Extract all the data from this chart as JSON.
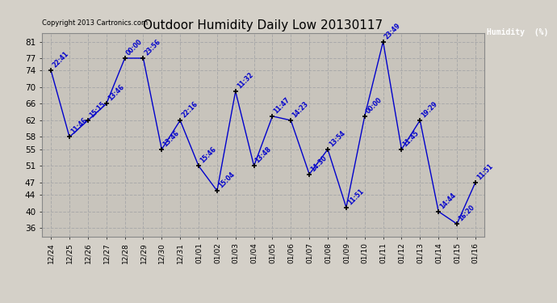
{
  "title": "Outdoor Humidity Daily Low 20130117",
  "copyright": "Copyright 2013 Cartronics.com",
  "legend_label": "Humidity  (%)",
  "x_labels": [
    "12/24",
    "12/25",
    "12/26",
    "12/27",
    "12/28",
    "12/29",
    "12/30",
    "12/31",
    "01/01",
    "01/02",
    "01/03",
    "01/04",
    "01/05",
    "01/06",
    "01/07",
    "01/08",
    "01/09",
    "01/10",
    "01/11",
    "01/12",
    "01/13",
    "01/14",
    "01/15",
    "01/16"
  ],
  "y_values": [
    74,
    58,
    62,
    66,
    77,
    77,
    55,
    62,
    51,
    45,
    69,
    51,
    63,
    62,
    49,
    55,
    41,
    63,
    81,
    55,
    62,
    40,
    37,
    47
  ],
  "point_labels": [
    "22:41",
    "11:46",
    "15:15",
    "13:46",
    "00:00",
    "23:56",
    "13:46",
    "22:16",
    "15:46",
    "15:04",
    "11:32",
    "13:48",
    "11:47",
    "14:23",
    "14:30",
    "13:54",
    "11:51",
    "00:00",
    "23:49",
    "11:45",
    "19:29",
    "14:44",
    "16:20",
    "11:51"
  ],
  "line_color": "#0000cc",
  "marker_color": "#000000",
  "bg_color": "#d4d0c8",
  "plot_bg_color": "#c8c4bc",
  "grid_color": "#aaaaaa",
  "label_color": "#0000cc",
  "title_color": "#000000",
  "y_ticks": [
    36,
    40,
    44,
    47,
    51,
    55,
    58,
    62,
    66,
    70,
    74,
    77,
    81
  ],
  "y_min": 34,
  "y_max": 83,
  "legend_bg": "#000080",
  "legend_text_color": "#ffffff"
}
